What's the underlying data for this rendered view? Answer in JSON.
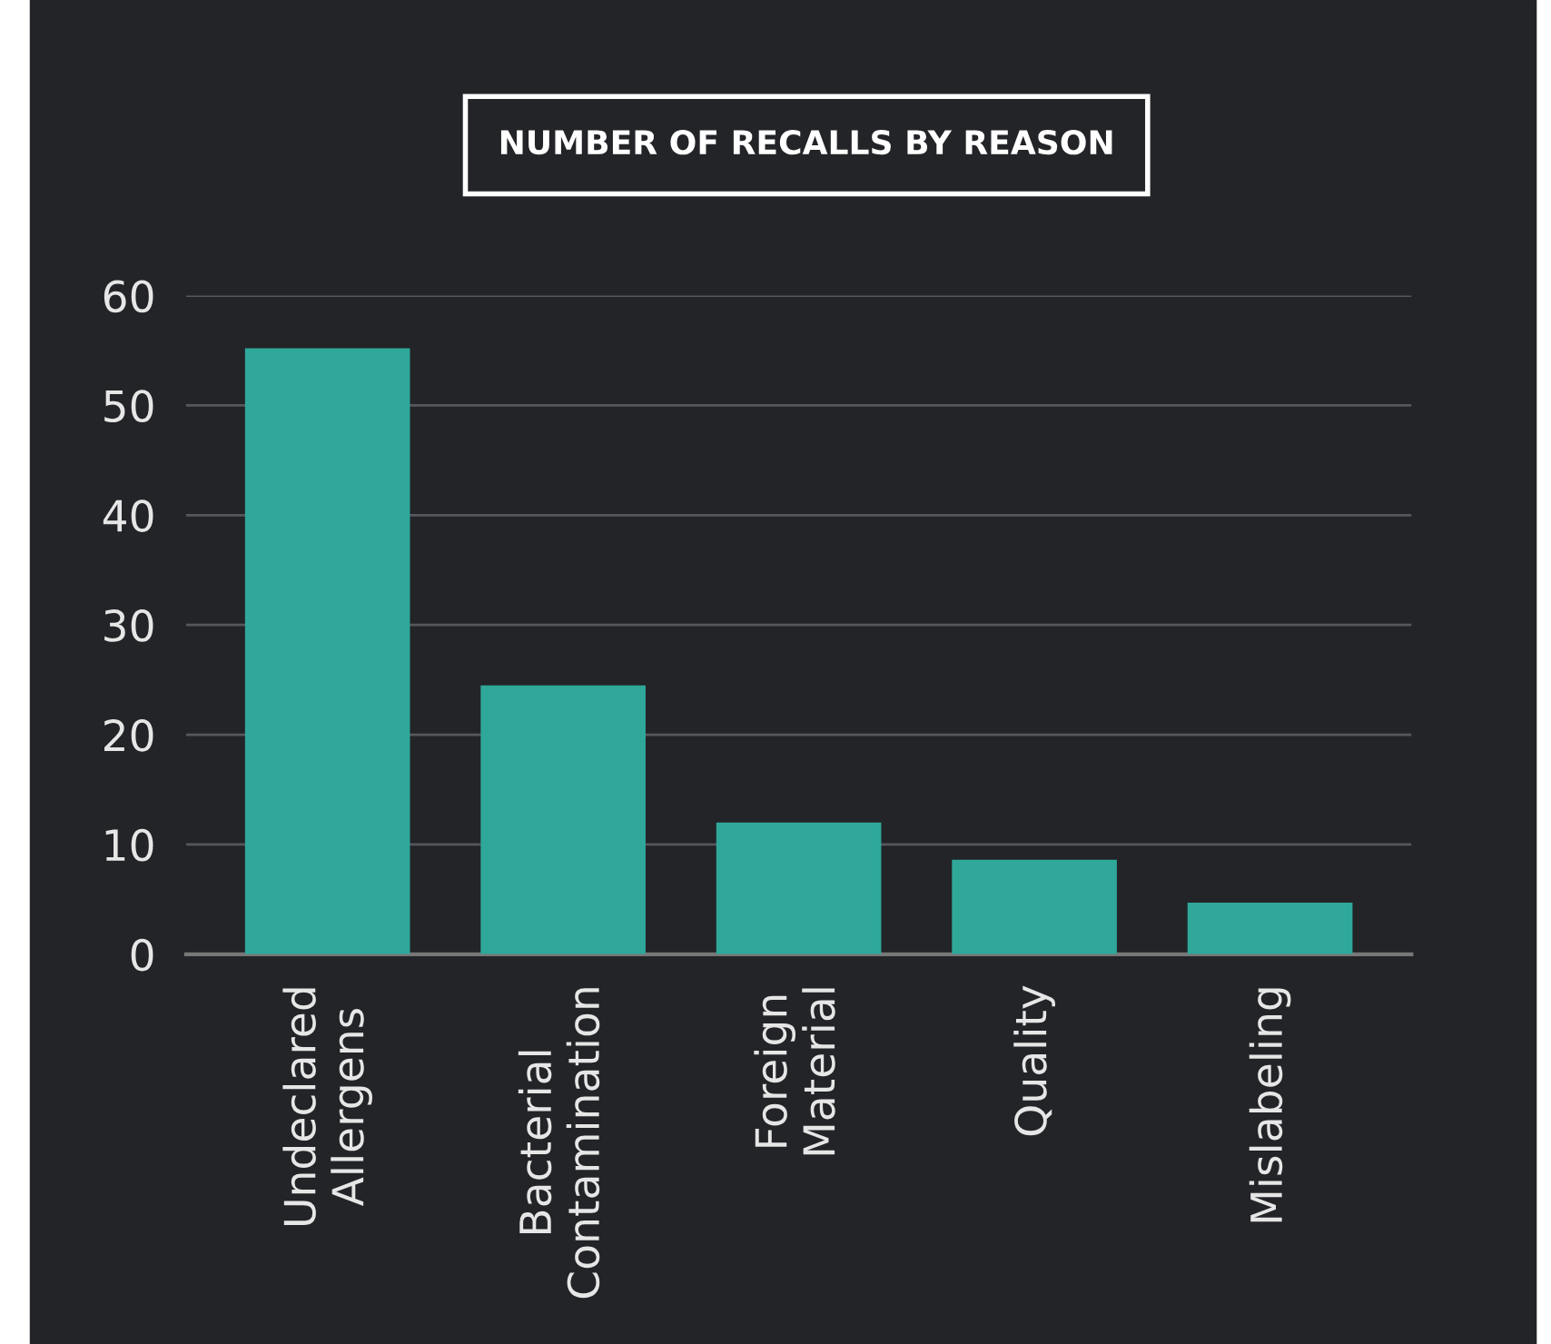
{
  "chart_data": {
    "type": "bar",
    "title": "NUMBER OF RECALLS BY REASON",
    "categories": [
      "Undeclared\nAllergens",
      "Bacterial\nContamination",
      "Foreign\nMaterial",
      "Quality",
      "Mislabeling"
    ],
    "values": [
      55.2,
      24.5,
      12,
      8.6,
      4.7
    ],
    "color": "#2fa89a",
    "ylim": [
      0,
      60
    ],
    "yticks": [
      0,
      10,
      20,
      30,
      40,
      50,
      60
    ],
    "grid": "y"
  }
}
